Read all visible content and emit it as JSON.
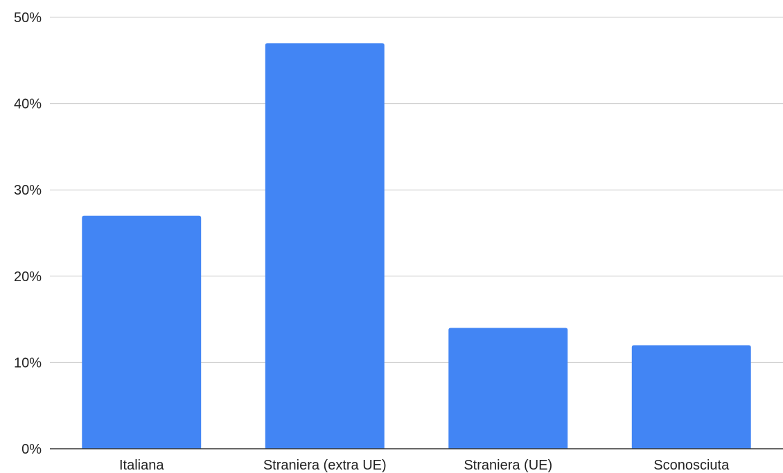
{
  "chart_data": {
    "type": "bar",
    "title": "",
    "xlabel": "",
    "ylabel": "",
    "categories": [
      "Italiana",
      "Straniera (extra UE)",
      "Straniera (UE)",
      "Sconosciuta"
    ],
    "values": [
      27,
      47,
      14,
      12
    ],
    "value_unit": "%",
    "ylim": [
      0,
      50
    ],
    "yticks": [
      0,
      10,
      20,
      30,
      40,
      50
    ],
    "ytick_labels": [
      "0%",
      "10%",
      "20%",
      "30%",
      "40%",
      "50%"
    ],
    "grid": true,
    "legend": "none",
    "bar_color": "#4285f4"
  }
}
